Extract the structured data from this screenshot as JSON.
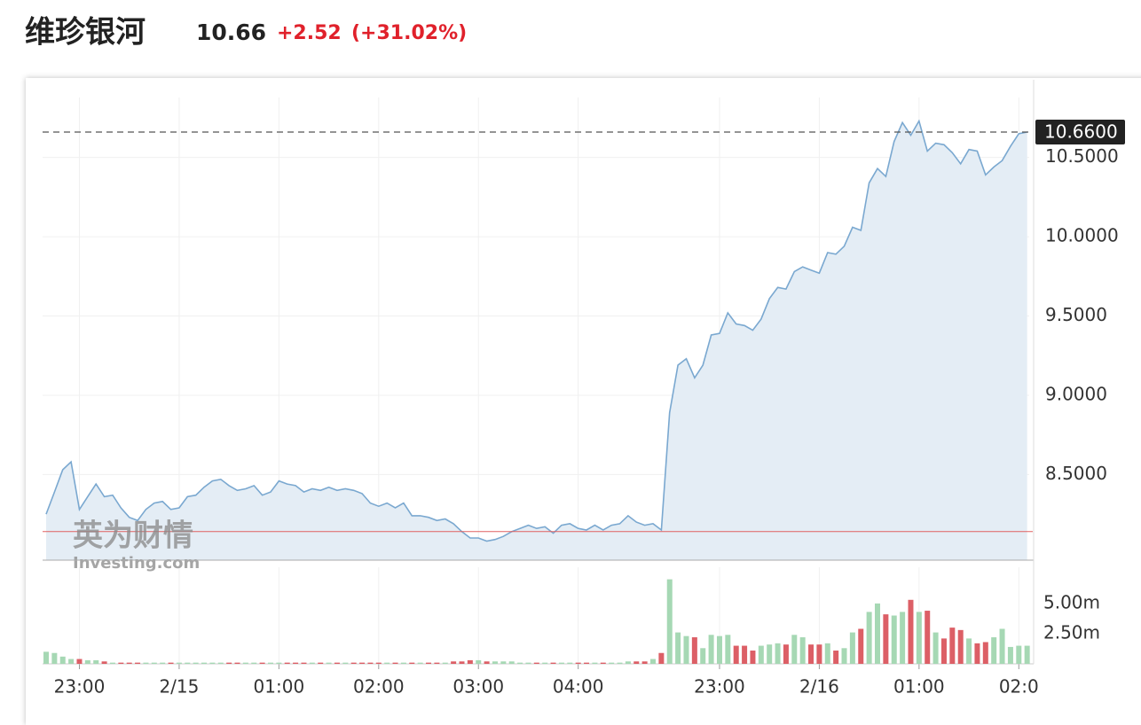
{
  "header": {
    "name": "维珍银河",
    "price": "10.66",
    "change": "+2.52",
    "change_pct": "(+31.02%)"
  },
  "watermark": {
    "brand": "英为财情",
    "site": "Investing.com"
  },
  "chart_data": [
    {
      "type": "line",
      "color": "#7aa8d0",
      "fill": "#e4edf5",
      "grid": true,
      "categories": [
        null,
        null,
        null,
        null,
        "23:00",
        null,
        null,
        null,
        null,
        null,
        null,
        null,
        null,
        null,
        null,
        null,
        "2/15",
        null,
        null,
        null,
        null,
        null,
        null,
        null,
        null,
        null,
        null,
        null,
        "01:00",
        null,
        null,
        null,
        null,
        null,
        null,
        null,
        null,
        null,
        null,
        null,
        "02:00",
        null,
        null,
        null,
        null,
        null,
        null,
        null,
        null,
        null,
        null,
        null,
        "03:00",
        null,
        null,
        null,
        null,
        null,
        null,
        null,
        null,
        null,
        null,
        null,
        "04:00",
        null,
        null,
        null,
        null,
        null,
        null,
        null,
        null,
        null,
        null,
        null,
        null,
        null,
        null,
        null,
        null,
        "23:00",
        null,
        null,
        null,
        null,
        null,
        null,
        null,
        null,
        null,
        null,
        null,
        "2/16",
        null,
        null,
        null,
        null,
        null,
        null,
        null,
        null,
        null,
        null,
        null,
        "01:00",
        null,
        null,
        null,
        null,
        null,
        null,
        null,
        null,
        null,
        null,
        null,
        "02:0",
        null
      ],
      "values": [
        8.25,
        8.39,
        8.53,
        8.58,
        8.28,
        8.36,
        8.44,
        8.36,
        8.37,
        8.29,
        8.23,
        8.21,
        8.28,
        8.32,
        8.33,
        8.28,
        8.29,
        8.36,
        8.37,
        8.42,
        8.46,
        8.47,
        8.43,
        8.4,
        8.41,
        8.43,
        8.37,
        8.39,
        8.46,
        8.44,
        8.43,
        8.39,
        8.41,
        8.4,
        8.42,
        8.4,
        8.41,
        8.4,
        8.38,
        8.32,
        8.3,
        8.32,
        8.29,
        8.32,
        8.24,
        8.24,
        8.23,
        8.21,
        8.22,
        8.19,
        8.14,
        8.1,
        8.1,
        8.08,
        8.09,
        8.11,
        8.14,
        8.16,
        8.18,
        8.16,
        8.17,
        8.13,
        8.18,
        8.19,
        8.16,
        8.15,
        8.18,
        8.15,
        8.18,
        8.19,
        8.24,
        8.2,
        8.18,
        8.19,
        8.15,
        8.89,
        9.19,
        9.23,
        9.11,
        9.19,
        9.38,
        9.39,
        9.52,
        9.45,
        9.44,
        9.41,
        9.48,
        9.61,
        9.68,
        9.67,
        9.78,
        9.81,
        9.79,
        9.77,
        9.9,
        9.89,
        9.94,
        10.06,
        10.04,
        10.34,
        10.43,
        10.38,
        10.6,
        10.72,
        10.64,
        10.73,
        10.54,
        10.59,
        10.58,
        10.53,
        10.46,
        10.55,
        10.54,
        10.39,
        10.44,
        10.48,
        10.57,
        10.65,
        10.66
      ],
      "ylim": [
        7.96,
        10.99
      ],
      "yticks": [
        {
          "value": 8.5,
          "label": "8.5000"
        },
        {
          "value": 9.0,
          "label": "9.0000"
        },
        {
          "value": 9.5,
          "label": "9.5000"
        },
        {
          "value": 10.0,
          "label": "10.0000"
        },
        {
          "value": 10.5,
          "label": "10.5000"
        }
      ],
      "current_price": {
        "value": 10.66,
        "label": "10.6600"
      },
      "reference_line": 8.14,
      "reference_color": "#e06060"
    },
    {
      "type": "bar",
      "up_color": "#a6d8b4",
      "down_color": "#dc5f66",
      "values": [
        1.0,
        0.9,
        0.6,
        0.4,
        0.4,
        0.3,
        0.3,
        0.2,
        0.1,
        0.1,
        0.1,
        0.1,
        0.1,
        0.1,
        0.1,
        0.1,
        0.1,
        0.1,
        0.1,
        0.1,
        0.1,
        0.1,
        0.1,
        0.1,
        0.1,
        0.1,
        0.1,
        0.1,
        0.1,
        0.1,
        0.1,
        0.1,
        0.1,
        0.1,
        0.1,
        0.1,
        0.1,
        0.1,
        0.1,
        0.1,
        0.1,
        0.1,
        0.1,
        0.1,
        0.1,
        0.1,
        0.1,
        0.1,
        0.1,
        0.2,
        0.2,
        0.3,
        0.3,
        0.2,
        0.2,
        0.2,
        0.2,
        0.1,
        0.1,
        0.1,
        0.1,
        0.1,
        0.1,
        0.1,
        0.1,
        0.1,
        0.1,
        0.1,
        0.1,
        0.1,
        0.2,
        0.2,
        0.2,
        0.4,
        0.9,
        7.0,
        2.6,
        2.3,
        2.2,
        1.3,
        2.4,
        2.3,
        2.4,
        1.5,
        1.5,
        1.1,
        1.5,
        1.6,
        1.7,
        1.6,
        2.4,
        2.2,
        1.6,
        1.6,
        1.7,
        1.1,
        1.3,
        2.6,
        2.9,
        4.3,
        5.0,
        4.1,
        4.0,
        4.3,
        5.3,
        4.3,
        4.4,
        2.6,
        2.1,
        3.0,
        2.8,
        2.1,
        1.7,
        1.8,
        2.2,
        2.9,
        1.4,
        1.5,
        1.5
      ],
      "ylim": [
        0,
        8.0
      ],
      "yticks": [
        {
          "value": 2.5,
          "label": "2.50m"
        },
        {
          "value": 5.0,
          "label": "5.00m"
        }
      ]
    }
  ]
}
